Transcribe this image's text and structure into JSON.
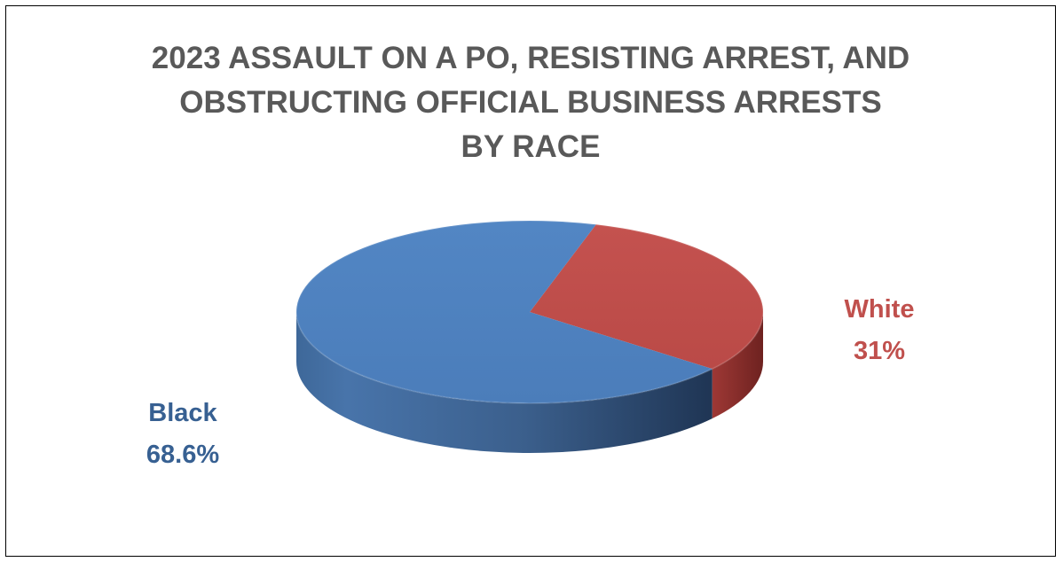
{
  "chart_data": {
    "type": "pie",
    "style": "3d",
    "title_lines": [
      "2023 ASSAULT ON A PO, RESISTING ARREST, AND",
      "OBSTRUCTING OFFICIAL BUSINESS ARRESTS",
      "BY RACE"
    ],
    "slices": [
      {
        "label": "White",
        "value": 31,
        "display": "31%",
        "color": "#C0504D"
      },
      {
        "label": "Black",
        "value": 68.6,
        "display": "68.6%",
        "color": "#4F81BD"
      }
    ],
    "legend": "none"
  }
}
